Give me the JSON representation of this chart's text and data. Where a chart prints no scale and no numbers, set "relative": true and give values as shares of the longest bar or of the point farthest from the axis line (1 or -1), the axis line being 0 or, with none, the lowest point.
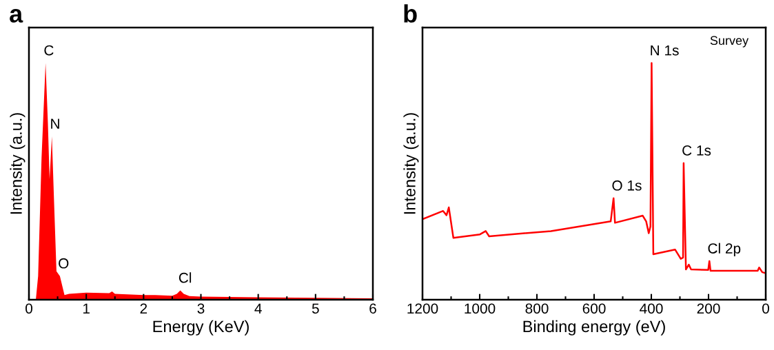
{
  "chart_data": [
    {
      "type": "area",
      "title": "a",
      "xlabel": "Energy (KeV)",
      "ylabel": "Intensity (a.u.)",
      "relative": true,
      "tick_labels": "x",
      "grid": false,
      "legend": false,
      "xlim": [
        0,
        6
      ],
      "xticks": [
        0,
        {
          "value": 0.5,
          "label": null
        },
        1,
        {
          "value": 1.5,
          "label": null
        },
        2,
        {
          "value": 2.5,
          "label": null
        },
        3,
        {
          "value": 3.5,
          "label": null
        },
        4,
        {
          "value": 4.5,
          "label": null
        },
        5,
        {
          "value": 5.5,
          "label": null
        },
        6
      ],
      "series": [
        {
          "color": "#ff0000",
          "x": [
            0,
            0.12,
            0.16,
            0.22,
            0.29,
            0.33,
            0.36,
            0.4,
            0.44,
            0.48,
            0.54,
            0.58,
            0.62,
            0.7,
            1.0,
            1.4,
            1.45,
            1.5,
            2.0,
            2.2,
            2.5,
            2.58,
            2.64,
            2.7,
            2.8,
            3.0,
            4.0,
            5.0,
            6.0
          ],
          "values": [
            0,
            0,
            0.1,
            0.6,
            1.0,
            0.75,
            0.51,
            0.69,
            0.4,
            0.12,
            0.1,
            0.06,
            0.02,
            0.025,
            0.03,
            0.028,
            0.035,
            0.025,
            0.02,
            0.02,
            0.017,
            0.025,
            0.039,
            0.025,
            0.015,
            0.013,
            0.01,
            0.008,
            0.006
          ]
        }
      ],
      "annotations": [
        {
          "text": "C",
          "x": 0.29,
          "y": 1.0
        },
        {
          "text": "N",
          "x": 0.4,
          "y": 0.69
        },
        {
          "text": "O",
          "x": 0.54,
          "y": 0.1
        },
        {
          "text": "Cl",
          "x": 2.64,
          "y": 0.039
        }
      ]
    },
    {
      "type": "line",
      "title": "b",
      "xlabel": "Binding energy (eV)",
      "ylabel": "Intensity (a.u.)",
      "relative": true,
      "tick_labels": "x",
      "grid": false,
      "legend": false,
      "xlim": [
        1200,
        0
      ],
      "xticks": [
        1200,
        {
          "value": 1100,
          "label": null
        },
        1000,
        {
          "value": 900,
          "label": null
        },
        800,
        {
          "value": 700,
          "label": null
        },
        600,
        {
          "value": 500,
          "label": null
        },
        400,
        {
          "value": 300,
          "label": null
        },
        200,
        {
          "value": 100,
          "label": null
        },
        0
      ],
      "series": [
        {
          "color": "#ff0000",
          "x": [
            1200,
            1128,
            1116,
            1108,
            1092,
            999,
            979,
            967,
            751,
            542,
            532,
            527,
            430,
            418,
            409,
            403,
            399,
            393,
            317,
            297,
            289,
            287,
            279,
            269,
            261,
            201,
            197,
            193,
            28,
            23,
            12,
            0
          ],
          "values": [
            0.34,
            0.375,
            0.357,
            0.39,
            0.261,
            0.276,
            0.29,
            0.268,
            0.29,
            0.331,
            0.429,
            0.325,
            0.355,
            0.331,
            0.281,
            0.31,
            1.0,
            0.192,
            0.212,
            0.173,
            0.178,
            0.577,
            0.128,
            0.148,
            0.128,
            0.126,
            0.163,
            0.122,
            0.122,
            0.136,
            0.116,
            0.112
          ]
        }
      ],
      "annotations": [
        "Survey",
        {
          "text": "N 1s",
          "x": 399,
          "y": 1.0
        },
        {
          "text": "C 1s",
          "x": 287,
          "y": 0.577
        },
        {
          "text": "O 1s",
          "x": 532,
          "y": 0.429
        },
        {
          "text": "Cl 2p",
          "x": 197,
          "y": 0.163
        }
      ]
    }
  ]
}
